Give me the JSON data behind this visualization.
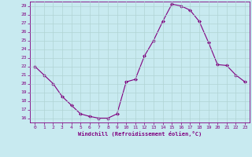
{
  "x": [
    0,
    1,
    2,
    3,
    4,
    5,
    6,
    7,
    8,
    9,
    10,
    11,
    12,
    13,
    14,
    15,
    16,
    17,
    18,
    19,
    20,
    21,
    22,
    23
  ],
  "y": [
    22,
    21,
    20,
    18.5,
    17.5,
    16.5,
    16.2,
    16.0,
    16.0,
    16.5,
    20.2,
    20.5,
    23.2,
    25.0,
    27.2,
    29.2,
    29.0,
    28.5,
    27.2,
    24.8,
    22.2,
    22.1,
    21.0,
    20.2
  ],
  "line_color": "#800080",
  "marker": "D",
  "marker_size": 2.0,
  "bg_color": "#c8eaf0",
  "grid_color": "#aacccc",
  "xlabel": "Windchill (Refroidissement éolien,°C)",
  "xlabel_color": "#800080",
  "tick_color": "#800080",
  "ylim": [
    16,
    29
  ],
  "xlim": [
    0,
    23
  ],
  "yticks": [
    16,
    17,
    18,
    19,
    20,
    21,
    22,
    23,
    24,
    25,
    26,
    27,
    28,
    29
  ],
  "xticks": [
    0,
    1,
    2,
    3,
    4,
    5,
    6,
    7,
    8,
    9,
    10,
    11,
    12,
    13,
    14,
    15,
    16,
    17,
    18,
    19,
    20,
    21,
    22,
    23
  ]
}
